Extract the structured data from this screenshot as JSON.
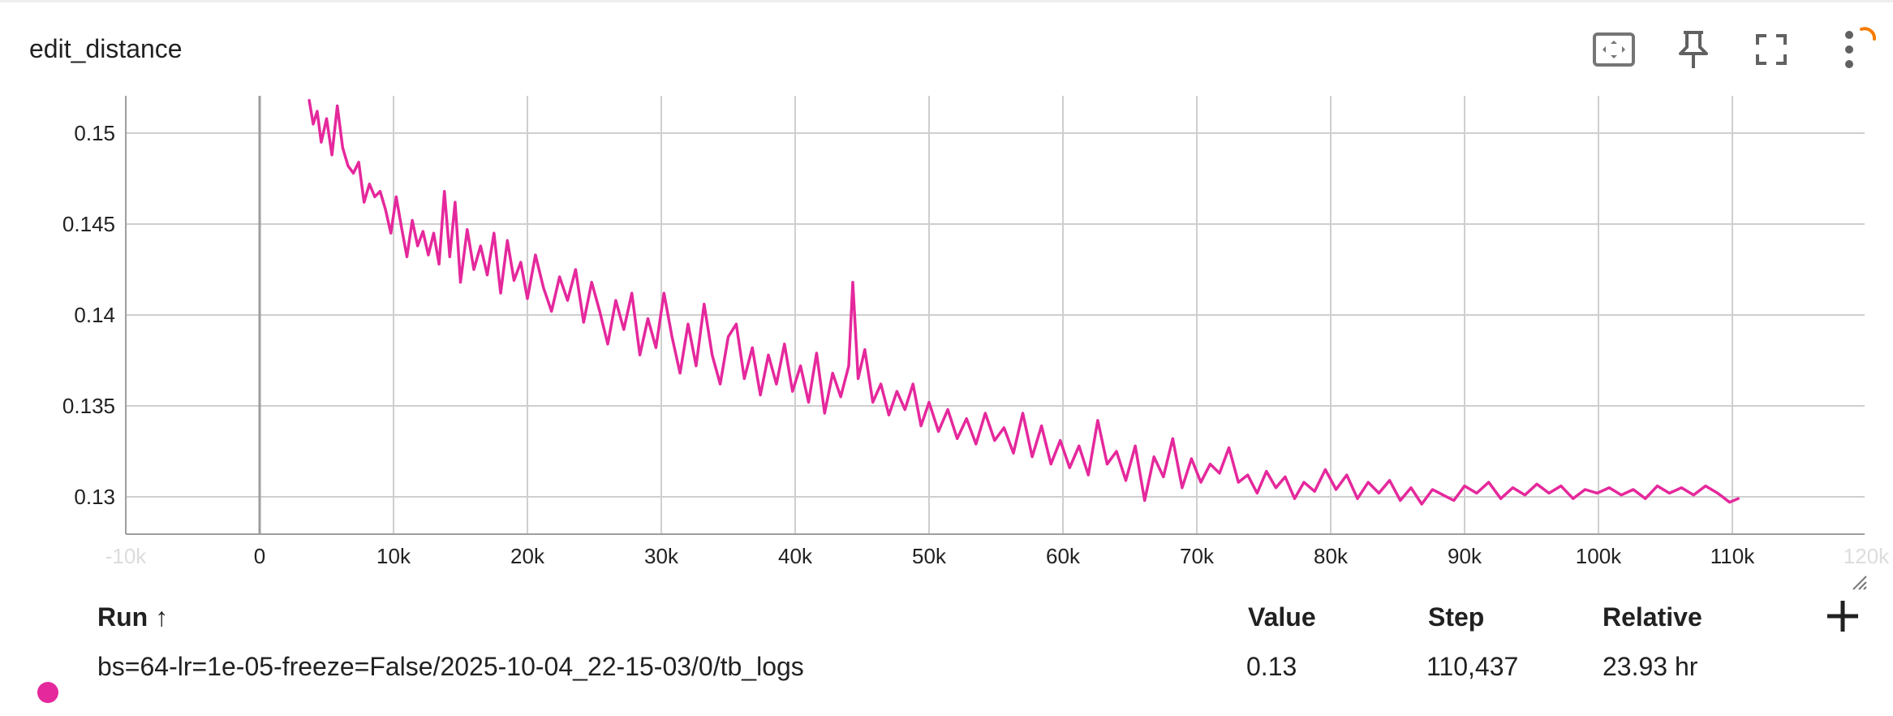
{
  "card": {
    "title": "edit_distance"
  },
  "toolbar": {
    "fit_domain": "fit-domain-icon",
    "pin": "pin-icon",
    "fullscreen": "fullscreen-icon",
    "more": "more-vert-icon"
  },
  "colors": {
    "series": "#e5289c",
    "grid": "#cfcfcf",
    "axis": "#9e9e9e",
    "spinner": "#f57c00"
  },
  "chart_data": {
    "type": "line",
    "title": "edit_distance",
    "xlabel": "",
    "ylabel": "",
    "xlim": [
      -10000,
      120000
    ],
    "ylim": [
      0.1278,
      0.152
    ],
    "grid": true,
    "x_ticks": [
      -10000,
      0,
      10000,
      20000,
      30000,
      40000,
      50000,
      60000,
      70000,
      80000,
      90000,
      100000,
      110000,
      120000
    ],
    "x_tick_labels": [
      "-10k",
      "0",
      "10k",
      "20k",
      "30k",
      "40k",
      "50k",
      "60k",
      "70k",
      "80k",
      "90k",
      "100k",
      "110k",
      "120k"
    ],
    "x_tick_faded": [
      "-10k",
      "120k"
    ],
    "y_ticks": [
      0.13,
      0.135,
      0.14,
      0.145,
      0.15
    ],
    "y_tick_labels": [
      "0.13",
      "0.135",
      "0.14",
      "0.145",
      "0.15"
    ],
    "series": [
      {
        "name": "bs=64-lr=1e-05-freeze=False/2025-10-04_22-15-03/0/tb_logs",
        "color": "#e5289c",
        "x": [
          3700,
          4000,
          4300,
          4600,
          5000,
          5400,
          5800,
          6200,
          6600,
          7000,
          7400,
          7800,
          8200,
          8600,
          9000,
          9400,
          9800,
          10200,
          10600,
          11000,
          11400,
          11800,
          12200,
          12600,
          13000,
          13400,
          13800,
          14200,
          14600,
          15000,
          15500,
          16000,
          16500,
          17000,
          17500,
          18000,
          18500,
          19000,
          19500,
          20000,
          20600,
          21200,
          21800,
          22400,
          23000,
          23600,
          24200,
          24800,
          25400,
          26000,
          26600,
          27200,
          27800,
          28400,
          29000,
          29600,
          30200,
          30800,
          31400,
          32000,
          32600,
          33200,
          33800,
          34400,
          35000,
          35600,
          36200,
          36800,
          37400,
          38000,
          38600,
          39200,
          39800,
          40400,
          41000,
          41600,
          42200,
          42800,
          43400,
          44000,
          44300,
          44700,
          45200,
          45800,
          46400,
          47000,
          47600,
          48200,
          48800,
          49400,
          50000,
          50700,
          51400,
          52100,
          52800,
          53500,
          54200,
          54900,
          55600,
          56300,
          57000,
          57700,
          58400,
          59100,
          59800,
          60500,
          61200,
          61900,
          62600,
          63300,
          64000,
          64700,
          65400,
          66100,
          66800,
          67500,
          68200,
          68900,
          69600,
          70300,
          71000,
          71700,
          72400,
          73100,
          73800,
          74500,
          75200,
          75900,
          76600,
          77300,
          78000,
          78800,
          79600,
          80400,
          81200,
          82000,
          82800,
          83600,
          84400,
          85200,
          86000,
          86800,
          87600,
          88400,
          89200,
          90000,
          90900,
          91800,
          92700,
          93600,
          94500,
          95400,
          96300,
          97200,
          98100,
          99000,
          99900,
          100800,
          101700,
          102600,
          103500,
          104400,
          105300,
          106200,
          107100,
          108000,
          108900,
          109800,
          110437
        ],
        "y": [
          0.1518,
          0.1505,
          0.1512,
          0.1495,
          0.1508,
          0.1488,
          0.1515,
          0.1492,
          0.1482,
          0.1478,
          0.1484,
          0.1462,
          0.1472,
          0.1465,
          0.1468,
          0.1458,
          0.1445,
          0.1465,
          0.1448,
          0.1432,
          0.1452,
          0.1438,
          0.1446,
          0.1433,
          0.1445,
          0.1428,
          0.1468,
          0.1432,
          0.1462,
          0.1418,
          0.1447,
          0.1425,
          0.1438,
          0.1422,
          0.1445,
          0.1412,
          0.1441,
          0.1419,
          0.1429,
          0.1409,
          0.1433,
          0.1415,
          0.1402,
          0.1421,
          0.1408,
          0.1425,
          0.1396,
          0.1418,
          0.1402,
          0.1384,
          0.1408,
          0.1392,
          0.1412,
          0.1378,
          0.1398,
          0.1382,
          0.1412,
          0.1388,
          0.1368,
          0.1395,
          0.1372,
          0.1406,
          0.1378,
          0.1362,
          0.1388,
          0.1395,
          0.1365,
          0.1382,
          0.1356,
          0.1378,
          0.1362,
          0.1384,
          0.1358,
          0.1372,
          0.1352,
          0.1379,
          0.1346,
          0.1368,
          0.1355,
          0.1372,
          0.1418,
          0.1365,
          0.1381,
          0.1352,
          0.1362,
          0.1345,
          0.1358,
          0.1348,
          0.1362,
          0.1339,
          0.1352,
          0.1336,
          0.1348,
          0.1332,
          0.1343,
          0.1329,
          0.1346,
          0.1331,
          0.1338,
          0.1324,
          0.1346,
          0.1322,
          0.1339,
          0.1318,
          0.1331,
          0.1316,
          0.1328,
          0.1312,
          0.1342,
          0.1318,
          0.1325,
          0.1309,
          0.1328,
          0.1298,
          0.1322,
          0.1311,
          0.1332,
          0.1305,
          0.1321,
          0.1308,
          0.1318,
          0.1313,
          0.1327,
          0.1308,
          0.1312,
          0.1302,
          0.1314,
          0.1305,
          0.1311,
          0.1299,
          0.1308,
          0.1303,
          0.1315,
          0.1304,
          0.1312,
          0.1299,
          0.1308,
          0.1302,
          0.1309,
          0.1298,
          0.1305,
          0.1296,
          0.1304,
          0.1301,
          0.1298,
          0.1306,
          0.1302,
          0.1308,
          0.1299,
          0.1305,
          0.1301,
          0.1307,
          0.1302,
          0.1306,
          0.1299,
          0.1304,
          0.1302,
          0.1305,
          0.1301,
          0.1304,
          0.1299,
          0.1306,
          0.1302,
          0.1305,
          0.1301,
          0.1306,
          0.1302,
          0.1297,
          0.1299
        ]
      }
    ]
  },
  "table": {
    "headers": {
      "run": "Run ↑",
      "value": "Value",
      "step": "Step",
      "relative": "Relative"
    },
    "rows": [
      {
        "run": "bs=64-lr=1e-05-freeze=False/2025-10-04_22-15-03/0/tb_logs",
        "value": "0.13",
        "step": "110,437",
        "relative": "23.93 hr"
      }
    ],
    "add_column_icon": "plus-icon"
  }
}
